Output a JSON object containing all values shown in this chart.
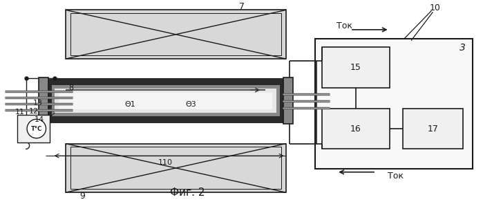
{
  "bg_color": "#ffffff",
  "lc": "#1a1a1a",
  "fig_label": "Фиг. 2",
  "tok_label": "Ток",
  "phi1_label": "Θ1",
  "phi3_label": "Θ3",
  "dim110_label": "110",
  "dark_tube": "#2a2a2a",
  "mid_tube": "#888888",
  "light_tube": "#cccccc",
  "hatch_fill": "#d8d8d8"
}
